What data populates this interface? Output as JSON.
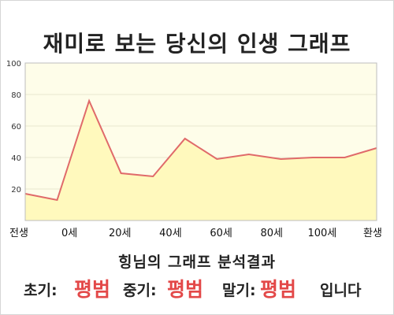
{
  "chart_data": {
    "type": "area",
    "title": "재미로 보는 당신의 인생 그래프",
    "x_tick_labels": [
      "전생",
      "0세",
      "20세",
      "40세",
      "60세",
      "80세",
      "100세",
      "환생"
    ],
    "y_ticks": [
      20,
      40,
      60,
      80,
      100
    ],
    "ylim": [
      0,
      100
    ],
    "grid": true,
    "series": [
      {
        "values": [
          17,
          13,
          76,
          30,
          28,
          52,
          39,
          42,
          39,
          40,
          40,
          46
        ]
      }
    ],
    "colors": {
      "line": "#e06a6a",
      "fill": "#fff9bd",
      "plot_bg": "#fefde9"
    }
  },
  "result": {
    "title": "힝님의 그래프 분석결과",
    "early_label": "초기:",
    "early_value": "평범",
    "mid_label": "중기:",
    "mid_value": "평범",
    "late_label": "말기:",
    "late_value": "평범",
    "suffix": "입니다"
  }
}
